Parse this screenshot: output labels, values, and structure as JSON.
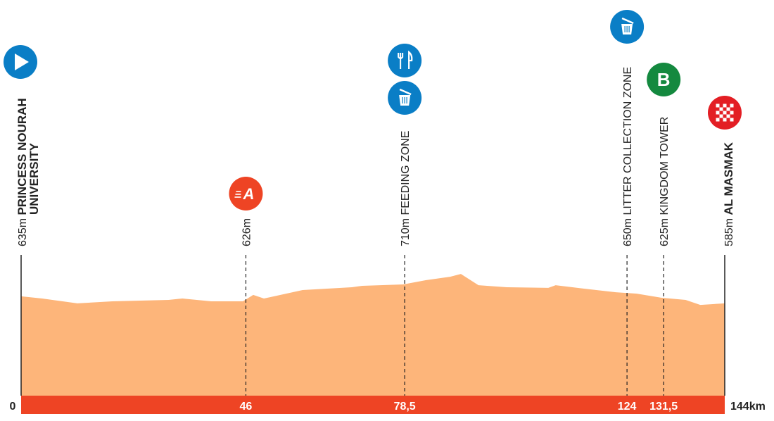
{
  "chart_data": {
    "type": "area",
    "xlabel": "",
    "ylabel": "",
    "xlim": [
      0,
      144
    ],
    "ylim": [
      0,
      800
    ],
    "unit_x": "km",
    "grid": false,
    "colors": {
      "profile": "#FDB57A",
      "base_bar": "#EE4424",
      "start": "#0A7EC6",
      "litter": "#0A7EC6",
      "feed": "#0A7EC6",
      "sprint_a": "#EE4424",
      "sprint_b": "#14893F",
      "finish": "#E31E24"
    },
    "profile": [
      [
        0,
        635
      ],
      [
        4.3,
        621
      ],
      [
        11.5,
        590
      ],
      [
        18.7,
        603
      ],
      [
        30.2,
        612
      ],
      [
        33,
        621
      ],
      [
        38.9,
        603
      ],
      [
        45.4,
        603
      ],
      [
        47.5,
        644
      ],
      [
        49.7,
        621
      ],
      [
        57.6,
        675
      ],
      [
        67.7,
        693
      ],
      [
        69.8,
        702
      ],
      [
        78.2,
        711
      ],
      [
        82.8,
        738
      ],
      [
        87.8,
        760
      ],
      [
        90,
        778
      ],
      [
        93.6,
        706
      ],
      [
        99.4,
        693
      ],
      [
        107.9,
        689
      ],
      [
        109.4,
        706
      ],
      [
        115.2,
        684
      ],
      [
        121.7,
        661
      ],
      [
        126,
        652
      ],
      [
        131,
        626
      ],
      [
        136,
        612
      ],
      [
        139,
        580
      ],
      [
        144,
        590
      ]
    ],
    "axis_ticks": [
      {
        "km": 0,
        "label": "0"
      },
      {
        "km": 46,
        "label": "46"
      },
      {
        "km": 78.5,
        "label": "78,5"
      },
      {
        "km": 124,
        "label": "124"
      },
      {
        "km": 131.5,
        "label": "131,5"
      },
      {
        "km": 144,
        "label": "144km"
      }
    ],
    "points": [
      {
        "km": 0,
        "alt": "635m",
        "name": "PRINCESS NOURAH",
        "name2": "UNIVERSITY",
        "bold": true,
        "icons": [
          "start-icon"
        ]
      },
      {
        "km": 46,
        "alt": "626m",
        "name": "",
        "bold": false,
        "icons": [
          "sprint-a-icon"
        ]
      },
      {
        "km": 78.5,
        "alt": "710m",
        "name": "FEEDING ZONE",
        "bold": false,
        "icons": [
          "feeding-icon",
          "litter-icon"
        ]
      },
      {
        "km": 124,
        "alt": "650m",
        "name": "LITTER COLLECTION ZONE",
        "bold": false,
        "icons": [
          "litter-icon"
        ]
      },
      {
        "km": 131.5,
        "alt": "625m",
        "name": "KINGDOM TOWER",
        "bold": false,
        "icons": [
          "sprint-b-icon"
        ]
      },
      {
        "km": 144,
        "alt": "585m",
        "name": "AL MASMAK",
        "bold": true,
        "icons": [
          "finish-icon"
        ]
      }
    ]
  }
}
